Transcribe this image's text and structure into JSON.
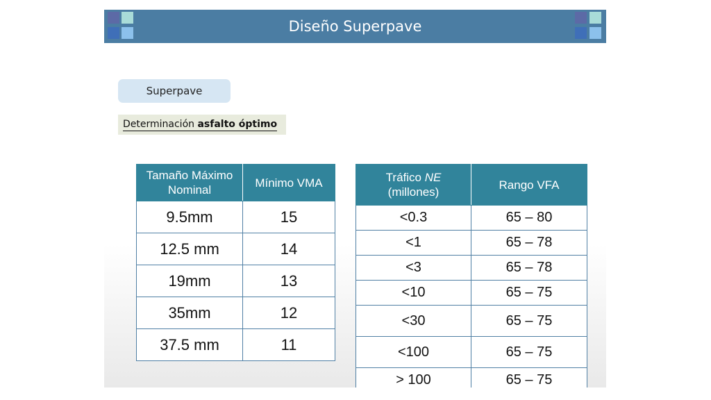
{
  "slide": {
    "title": "Diseño Superpave",
    "colors": {
      "title_bar": "#4b7da3",
      "table_header": "#31849b",
      "pill_background": "#d6e6f3",
      "subheading_background": "#e8ebdd"
    }
  },
  "pill": {
    "label": "Superpave"
  },
  "subheading": {
    "prefix": "Determinación ",
    "bold": "asfalto óptimo"
  },
  "table_vma": {
    "headers": [
      "Tamaño Máximo Nominal",
      "Mínimo VMA"
    ],
    "rows": [
      [
        "9.5mm",
        "15"
      ],
      [
        "12.5 mm",
        "14"
      ],
      [
        "19mm",
        "13"
      ],
      [
        "35mm",
        "12"
      ],
      [
        "37.5 mm",
        "11"
      ]
    ]
  },
  "table_vfa": {
    "header_1_prefix": "Tráfico ",
    "header_1_italic": "NE",
    "header_1_suffix": "(millones)",
    "header_2": "Rango VFA",
    "rows": [
      [
        "<0.3",
        "65 – 80"
      ],
      [
        "<1",
        "65 – 78"
      ],
      [
        "<3",
        "65 – 78"
      ],
      [
        "<10",
        "65 – 75"
      ],
      [
        "<30",
        "65 – 75"
      ],
      [
        "<100",
        "65 – 75"
      ],
      [
        "> 100",
        "65 – 75"
      ]
    ]
  }
}
